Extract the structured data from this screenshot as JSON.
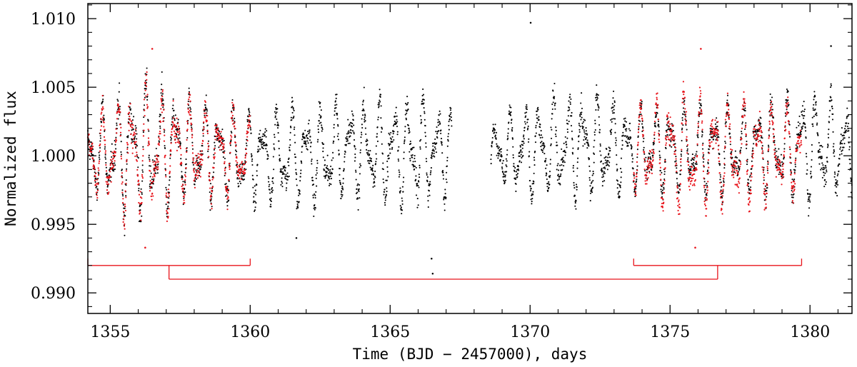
{
  "chart_data": {
    "type": "scatter",
    "title": "",
    "xlabel": "Time (BJD − 2457000), days",
    "ylabel": "Normalized flux",
    "xlim": [
      1354.2,
      1381.5
    ],
    "ylim": [
      0.9885,
      1.0111
    ],
    "xticks": [
      1355,
      1360,
      1365,
      1370,
      1375,
      1380
    ],
    "xtick_labels": [
      "1355",
      "1360",
      "1365",
      "1370",
      "1375",
      "1380"
    ],
    "yticks": [
      0.99,
      0.995,
      1.0,
      1.005,
      1.01
    ],
    "ytick_labels": [
      "0.990",
      "0.995",
      "1.000",
      "1.005",
      "1.010"
    ],
    "grid": false,
    "legend": null,
    "series": [
      {
        "color": "#000000",
        "data_gap": [
          1367.2,
          1368.6
        ],
        "envelope": [
          {
            "x": 1354.2,
            "lo": 0.9965,
            "hi": 1.0035
          },
          {
            "x": 1356.0,
            "lo": 0.994,
            "hi": 1.007
          },
          {
            "x": 1358.0,
            "lo": 0.996,
            "hi": 1.005
          },
          {
            "x": 1360.0,
            "lo": 0.9958,
            "hi": 1.004
          },
          {
            "x": 1362.0,
            "lo": 0.9955,
            "hi": 1.0045
          },
          {
            "x": 1364.0,
            "lo": 0.996,
            "hi": 1.005
          },
          {
            "x": 1366.0,
            "lo": 0.995,
            "hi": 1.0055
          },
          {
            "x": 1367.1,
            "lo": 0.9965,
            "hi": 1.0045
          },
          {
            "x": 1368.7,
            "lo": 0.9975,
            "hi": 1.003
          },
          {
            "x": 1370.0,
            "lo": 0.996,
            "hi": 1.005
          },
          {
            "x": 1372.0,
            "lo": 0.996,
            "hi": 1.0055
          },
          {
            "x": 1373.7,
            "lo": 0.9965,
            "hi": 1.0045
          },
          {
            "x": 1378.0,
            "lo": 0.9965,
            "hi": 1.0045
          },
          {
            "x": 1380.0,
            "lo": 0.9955,
            "hi": 1.006
          },
          {
            "x": 1381.5,
            "lo": 0.9965,
            "hi": 1.0045
          }
        ],
        "outliers": [
          {
            "x": 1370.02,
            "y": 1.0097
          },
          {
            "x": 1366.52,
            "y": 0.9914
          },
          {
            "x": 1366.48,
            "y": 0.9925
          },
          {
            "x": 1361.65,
            "y": 0.994
          },
          {
            "x": 1380.75,
            "y": 1.008
          }
        ]
      },
      {
        "color": "#e8141b",
        "segments": [
          [
            1354.2,
            1360.0
          ],
          [
            1373.7,
            1379.7
          ]
        ],
        "envelope": [
          {
            "x": 1354.2,
            "lo": 0.9965,
            "hi": 1.0035
          },
          {
            "x": 1356.0,
            "lo": 0.994,
            "hi": 1.0065
          },
          {
            "x": 1358.0,
            "lo": 0.996,
            "hi": 1.0048
          },
          {
            "x": 1360.0,
            "lo": 0.9965,
            "hi": 1.0035
          },
          {
            "x": 1373.7,
            "lo": 0.9965,
            "hi": 1.0045
          },
          {
            "x": 1375.5,
            "lo": 0.9945,
            "hi": 1.006
          },
          {
            "x": 1377.5,
            "lo": 0.9955,
            "hi": 1.005
          },
          {
            "x": 1379.7,
            "lo": 0.9962,
            "hi": 1.0042
          }
        ],
        "outliers": [
          {
            "x": 1356.5,
            "y": 1.0078
          },
          {
            "x": 1376.1,
            "y": 1.0078
          },
          {
            "x": 1375.9,
            "y": 0.9933
          },
          {
            "x": 1356.25,
            "y": 0.9933
          }
        ]
      }
    ],
    "annotations": [
      {
        "type": "bracket",
        "color": "#e8141b",
        "top_y": 0.992,
        "bottom_y": 0.991,
        "left": {
          "x0": 1354.2,
          "x1": 1360.0,
          "mid": 1357.1
        },
        "right": {
          "x0": 1373.7,
          "x1": 1379.7,
          "mid": 1376.7
        }
      }
    ]
  }
}
